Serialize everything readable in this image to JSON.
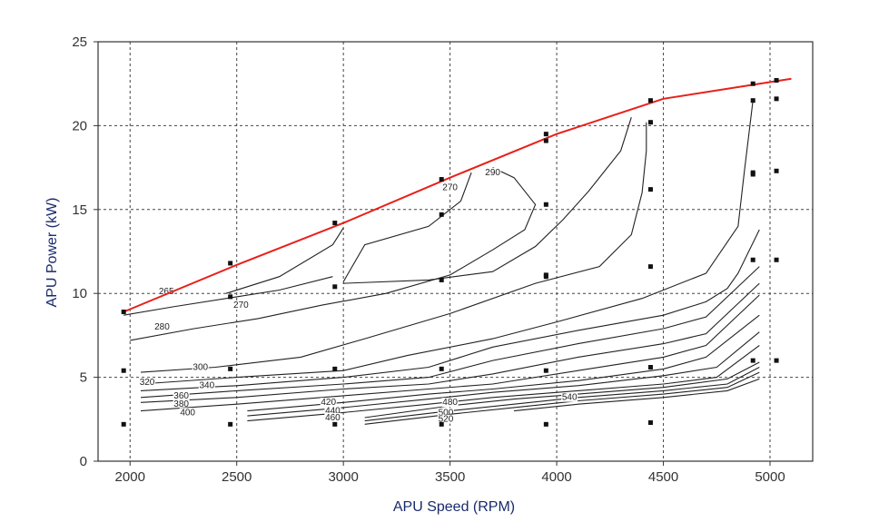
{
  "chart_data": {
    "type": "contour",
    "xlabel": "APU Speed (RPM)",
    "ylabel": "APU Power (kW)",
    "xlim": [
      1850,
      5200
    ],
    "ylim": [
      0,
      25
    ],
    "xticks": [
      2000,
      2500,
      3000,
      3500,
      4000,
      4500,
      5000
    ],
    "yticks": [
      0,
      5,
      10,
      15,
      20,
      25
    ],
    "grid": true,
    "colors": {
      "boundary": "#e8201a",
      "contour": "#222222",
      "grid": "#444444",
      "axis_text": "#1a2a6c"
    },
    "max_power_line": {
      "x": [
        1970,
        2500,
        3000,
        3500,
        4000,
        4500,
        4950,
        5100
      ],
      "y": [
        8.9,
        11.7,
        14.2,
        16.9,
        19.5,
        21.6,
        22.5,
        22.8
      ]
    },
    "sample_points": {
      "x": [
        1970,
        1970,
        1970,
        2470,
        2470,
        2470,
        2470,
        2960,
        2960,
        2960,
        2960,
        3460,
        3460,
        3460,
        3460,
        3460,
        3950,
        3950,
        3950,
        3950,
        3950,
        3950,
        3950,
        4440,
        4440,
        4440,
        4440,
        4440,
        4440,
        4920,
        4920,
        4920,
        4920,
        4920,
        4920,
        5030,
        5030,
        5030,
        5030,
        5030
      ],
      "y": [
        2.2,
        5.4,
        8.9,
        2.2,
        5.5,
        9.8,
        11.8,
        2.2,
        5.5,
        10.4,
        14.2,
        2.2,
        5.5,
        10.8,
        14.7,
        16.8,
        2.2,
        5.4,
        11.0,
        11.1,
        15.3,
        19.1,
        19.5,
        2.3,
        5.6,
        11.6,
        16.2,
        20.2,
        21.5,
        6.0,
        12.0,
        17.2,
        21.5,
        22.5,
        17.1,
        6.0,
        12.0,
        17.3,
        21.6,
        22.7
      ]
    },
    "contours": [
      {
        "level": "265",
        "label_at": [
          2170,
          10.0
        ],
        "x": [
          1970,
          2200,
          2500,
          2700,
          2950
        ],
        "y": [
          8.7,
          9.2,
          9.8,
          10.2,
          11.0
        ]
      },
      {
        "level": "270",
        "label_at": [
          2520,
          9.2
        ],
        "x": [
          2450,
          2700,
          2950,
          3000
        ],
        "y": [
          10.0,
          11.0,
          12.9,
          13.9
        ]
      },
      {
        "level": "270",
        "label_at": [
          3500,
          16.2
        ],
        "x": [
          3000,
          3100,
          3400,
          3550,
          3600
        ],
        "y": [
          10.7,
          12.9,
          14.0,
          15.5,
          17.2
        ]
      },
      {
        "level": "280",
        "label_at": [
          2150,
          7.9
        ],
        "x": [
          2000,
          2300,
          2600,
          2900,
          3200,
          3500,
          3700,
          3850,
          3900,
          3800,
          3700
        ],
        "y": [
          7.2,
          7.9,
          8.5,
          9.3,
          10.0,
          11.1,
          12.6,
          13.8,
          15.3,
          16.9,
          17.5
        ]
      },
      {
        "level": "290",
        "label_at": [
          3700,
          17.1
        ],
        "x": [
          3000,
          3400,
          3700,
          3900,
          4030,
          4150,
          4300,
          4350
        ],
        "y": [
          10.6,
          10.8,
          11.3,
          12.8,
          14.4,
          16.1,
          18.5,
          20.5
        ]
      },
      {
        "level": "300",
        "label_at": [
          2330,
          5.5
        ],
        "x": [
          2050,
          2400,
          2800,
          3100,
          3500,
          3900,
          4200,
          4350,
          4400,
          4420,
          4420
        ],
        "y": [
          5.3,
          5.6,
          6.2,
          7.3,
          8.8,
          10.6,
          11.6,
          13.5,
          16.0,
          18.5,
          20.2
        ]
      },
      {
        "level": "320",
        "label_at": [
          2080,
          4.6
        ],
        "x": [
          2050,
          2500,
          3000,
          3300,
          3700,
          4000,
          4400,
          4700,
          4850,
          4880,
          4920
        ],
        "y": [
          4.6,
          5.0,
          5.4,
          6.3,
          7.3,
          8.3,
          9.7,
          11.2,
          14.0,
          17.3,
          21.5
        ]
      },
      {
        "level": "340",
        "label_at": [
          2360,
          4.4
        ],
        "x": [
          2050,
          2500,
          3000,
          3400,
          3700,
          4100,
          4500,
          4700,
          4800,
          4850,
          4950
        ],
        "y": [
          4.2,
          4.5,
          5.0,
          5.6,
          6.8,
          7.8,
          8.7,
          9.5,
          10.3,
          11.2,
          13.8
        ]
      },
      {
        "level": "360",
        "label_at": [
          2240,
          3.8
        ],
        "x": [
          2050,
          2500,
          3000,
          3400,
          3700,
          4100,
          4500,
          4700,
          4950
        ],
        "y": [
          3.8,
          4.2,
          4.6,
          5.0,
          6.0,
          7.0,
          7.9,
          8.6,
          11.6
        ]
      },
      {
        "level": "380",
        "label_at": [
          2240,
          3.3
        ],
        "x": [
          2050,
          2500,
          3000,
          3400,
          3700,
          4100,
          4500,
          4700,
          4950
        ],
        "y": [
          3.5,
          3.8,
          4.3,
          4.6,
          5.2,
          6.2,
          7.0,
          7.6,
          10.6
        ]
      },
      {
        "level": "400",
        "label_at": [
          2270,
          2.8
        ],
        "x": [
          2050,
          2500,
          3000,
          3400,
          3700,
          4100,
          4500,
          4700,
          4950
        ],
        "y": [
          3.0,
          3.4,
          3.9,
          4.3,
          4.6,
          5.4,
          6.2,
          6.9,
          9.9
        ]
      },
      {
        "level": "420",
        "label_at": [
          2930,
          3.4
        ],
        "x": [
          2550,
          3000,
          3400,
          3700,
          4100,
          4500,
          4700,
          4950
        ],
        "y": [
          3.0,
          3.5,
          4.0,
          4.3,
          4.8,
          5.5,
          6.2,
          8.7
        ]
      },
      {
        "level": "440",
        "label_at": [
          2950,
          2.9
        ],
        "x": [
          2550,
          3000,
          3400,
          3700,
          4100,
          4500,
          4750,
          4950
        ],
        "y": [
          2.7,
          3.2,
          3.7,
          4.1,
          4.5,
          5.1,
          5.6,
          7.7
        ]
      },
      {
        "level": "460",
        "label_at": [
          2950,
          2.5
        ],
        "x": [
          2550,
          3000,
          3400,
          3700,
          4100,
          4500,
          4750,
          4950
        ],
        "y": [
          2.4,
          2.9,
          3.4,
          3.8,
          4.2,
          4.6,
          5.0,
          6.9
        ]
      },
      {
        "level": "480",
        "label_at": [
          3500,
          3.4
        ],
        "x": [
          3100,
          3500,
          3800,
          4100,
          4500,
          4800,
          4950
        ],
        "y": [
          2.6,
          3.3,
          3.7,
          4.0,
          4.4,
          4.9,
          5.9
        ]
      },
      {
        "level": "500",
        "label_at": [
          3480,
          2.8
        ],
        "x": [
          3100,
          3500,
          3800,
          4100,
          4500,
          4800,
          4950
        ],
        "y": [
          2.4,
          3.0,
          3.4,
          3.8,
          4.2,
          4.6,
          5.6
        ]
      },
      {
        "level": "520",
        "label_at": [
          3480,
          2.4
        ],
        "x": [
          3100,
          3500,
          3800,
          4100,
          4500,
          4800,
          4950
        ],
        "y": [
          2.2,
          2.8,
          3.2,
          3.6,
          4.0,
          4.4,
          5.3
        ]
      },
      {
        "level": "540",
        "label_at": [
          4060,
          3.7
        ],
        "x": [
          3800,
          4100,
          4500,
          4800,
          4950
        ],
        "y": [
          3.0,
          3.4,
          3.8,
          4.2,
          4.9
        ]
      }
    ]
  }
}
